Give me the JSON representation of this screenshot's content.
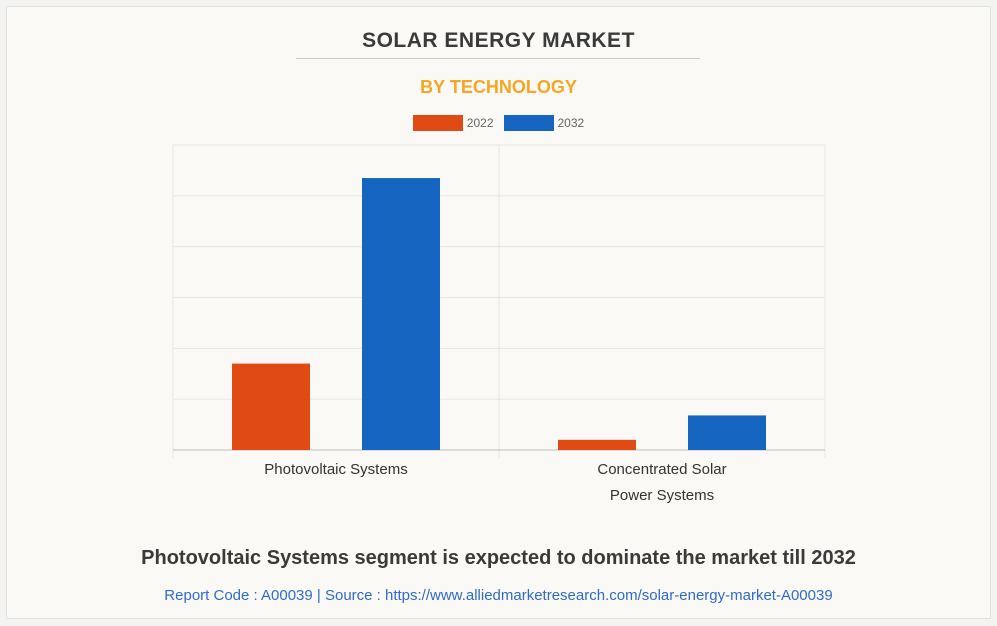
{
  "header": {
    "title": "SOLAR ENERGY MARKET",
    "subtitle": "BY TECHNOLOGY"
  },
  "colors": {
    "series_2022": "#e04a14",
    "series_2032": "#1565c0",
    "subtitle": "#f6a623",
    "footer": "#2e6cc7"
  },
  "chart_data": {
    "type": "bar",
    "categories": [
      "Photovoltaic Systems",
      "Concentrated Solar Power Systems"
    ],
    "category_lines": [
      [
        "Photovoltaic Systems"
      ],
      [
        "Concentrated Solar",
        "Power Systems"
      ]
    ],
    "series": [
      {
        "name": "2022",
        "color": "#e04a14",
        "values": [
          1.7,
          0.2
        ]
      },
      {
        "name": "2032",
        "color": "#1565c0",
        "values": [
          5.35,
          0.68
        ]
      }
    ],
    "ylim": [
      0,
      6
    ],
    "grid": true,
    "legend_position": "top-center",
    "title": "SOLAR ENERGY MARKET",
    "subtitle": "BY TECHNOLOGY",
    "xlabel": "",
    "ylabel": ""
  },
  "headline": "Photovoltaic Systems segment is expected to dominate the market till 2032",
  "footer": {
    "text": "Report Code : A00039  |  Source : https://www.alliedmarketresearch.com/solar-energy-market-A00039"
  }
}
